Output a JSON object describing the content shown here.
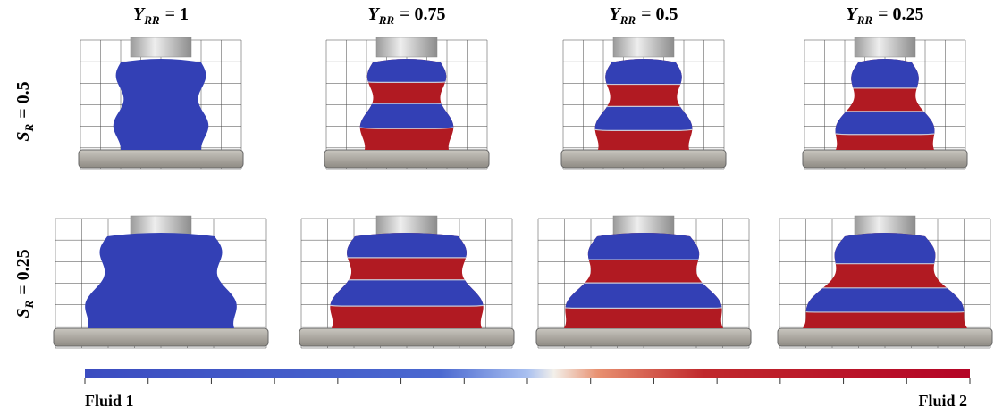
{
  "column_headers": [
    {
      "symbol": "Y",
      "subscript": "RR",
      "value": "= 1"
    },
    {
      "symbol": "Y",
      "subscript": "RR",
      "value": "= 0.75"
    },
    {
      "symbol": "Y",
      "subscript": "RR",
      "value": "= 0.5"
    },
    {
      "symbol": "Y",
      "subscript": "RR",
      "value": "= 0.25"
    }
  ],
  "row_labels": [
    {
      "symbol": "S",
      "subscript": "R",
      "value": "= 0.5"
    },
    {
      "symbol": "S",
      "subscript": "R",
      "value": "= 0.25"
    }
  ],
  "colorbar": {
    "left_label": "Fluid 1",
    "right_label": "Fluid 2"
  }
}
